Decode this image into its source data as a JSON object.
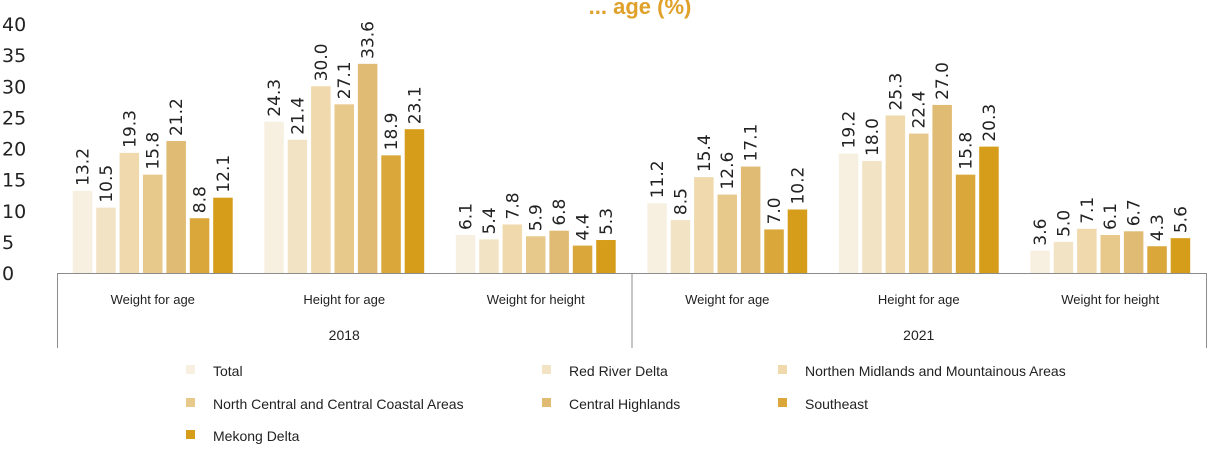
{
  "chart_data": {
    "type": "bar",
    "title": "... age (%)",
    "ylim": [
      0,
      40
    ],
    "yticks": [
      0,
      5,
      10,
      15,
      20,
      25,
      30,
      35,
      40
    ],
    "groups": [
      {
        "label": "2018",
        "categories": [
          "Weight for age",
          "Height for age",
          "Weight for height"
        ]
      },
      {
        "label": "2021",
        "categories": [
          "Weight for age",
          "Height for age",
          "Weight for height"
        ]
      }
    ],
    "series": [
      {
        "name": "Total",
        "color": "#f7f0e1",
        "values": [
          13.2,
          24.3,
          6.1,
          11.2,
          19.2,
          3.6
        ]
      },
      {
        "name": "Red River Delta",
        "color": "#f2e3c5",
        "values": [
          10.5,
          21.4,
          5.4,
          8.5,
          18.0,
          5.0
        ]
      },
      {
        "name": "Northen Midlands and Mountainous Areas",
        "color": "#efd9ad",
        "values": [
          19.3,
          30.0,
          7.8,
          15.4,
          25.3,
          7.1
        ]
      },
      {
        "name": "North Central and Central Coastal Areas",
        "color": "#e7c98b",
        "values": [
          15.8,
          27.1,
          5.9,
          12.6,
          22.4,
          6.1
        ]
      },
      {
        "name": "Central Highlands",
        "color": "#e0bb73",
        "values": [
          21.2,
          33.6,
          6.8,
          17.1,
          27.0,
          6.7
        ]
      },
      {
        "name": "Southeast",
        "color": "#d9a73a",
        "values": [
          8.8,
          18.9,
          4.4,
          7.0,
          15.8,
          4.3
        ]
      },
      {
        "name": "Mekong Delta",
        "color": "#d69d1a",
        "values": [
          12.1,
          23.1,
          5.3,
          10.2,
          20.3,
          5.6
        ]
      }
    ],
    "value_format": "one-decimal",
    "grid": false,
    "legend": "bottom"
  }
}
